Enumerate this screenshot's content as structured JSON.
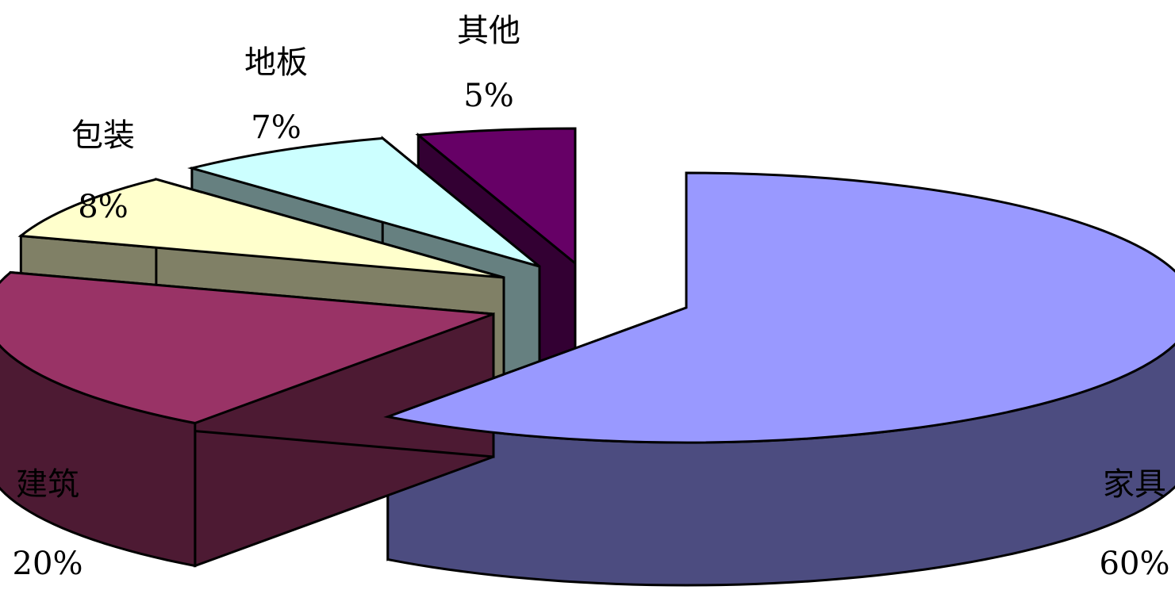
{
  "chart_data": {
    "type": "pie",
    "style": "3d-exploded",
    "title": "",
    "slices": [
      {
        "label": "家具",
        "value": 60,
        "display": "60%",
        "top_color": "#9999ff",
        "side_color": "#4c4c80"
      },
      {
        "label": "建筑",
        "value": 20,
        "display": "20%",
        "top_color": "#993366",
        "side_color": "#4d1a33"
      },
      {
        "label": "包装",
        "value": 8,
        "display": "8%",
        "top_color": "#ffffcc",
        "side_color": "#808066"
      },
      {
        "label": "地板",
        "value": 7,
        "display": "7%",
        "top_color": "#ccffff",
        "side_color": "#668080"
      },
      {
        "label": "其他",
        "value": 5,
        "display": "5%",
        "top_color": "#660066",
        "side_color": "#330033"
      }
    ],
    "legend": "none"
  }
}
